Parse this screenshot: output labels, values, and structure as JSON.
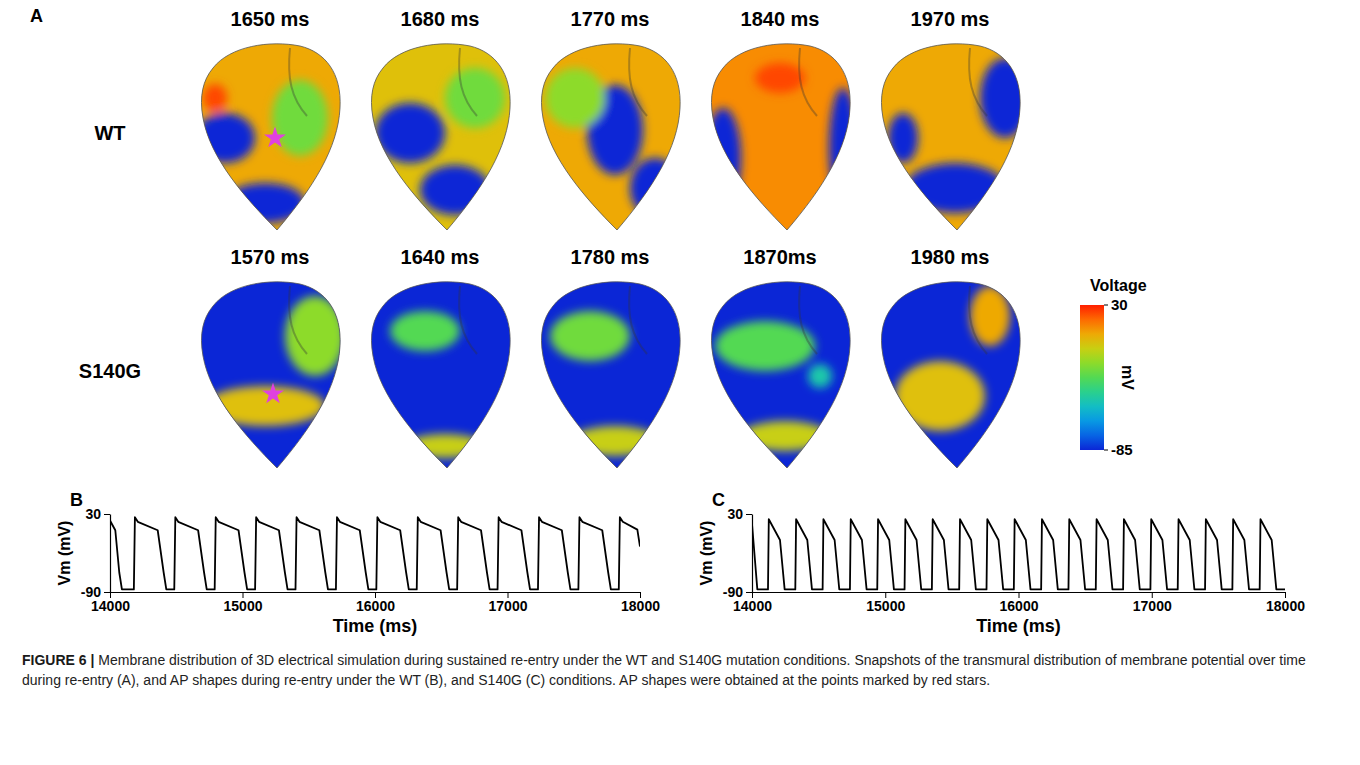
{
  "chart_data": [
    {
      "type": "line",
      "panel_label": "B",
      "x_label": "Time (ms)",
      "y_label": "Vm (mV)",
      "color": "#000000",
      "xlim": [
        14000,
        18000
      ],
      "xticks": [
        14000,
        15000,
        16000,
        17000,
        18000
      ],
      "ylim": [
        -90,
        30
      ],
      "yticks": [
        30,
        -90
      ],
      "x": [
        14000,
        14040,
        14070,
        14090,
        14180,
        14188,
        14210,
        14360,
        14405,
        14425,
        14485,
        14493,
        14515,
        14665,
        14710,
        14730,
        14790,
        14798,
        14820,
        14970,
        15015,
        15035,
        15095,
        15103,
        15125,
        15275,
        15320,
        15340,
        15400,
        15408,
        15430,
        15580,
        15625,
        15645,
        15705,
        15713,
        15735,
        15885,
        15930,
        15950,
        16010,
        16018,
        16040,
        16190,
        16235,
        16255,
        16315,
        16323,
        16345,
        16495,
        16540,
        16560,
        16620,
        16628,
        16650,
        16800,
        16845,
        16865,
        16925,
        16933,
        16955,
        17105,
        17150,
        17170,
        17230,
        17238,
        17260,
        17410,
        17455,
        17475,
        17535,
        17543,
        17565,
        17715,
        17760,
        17780,
        17840,
        17848,
        17870,
        17980,
        18000
      ],
      "values": [
        20,
        5,
        -60,
        -86,
        -86,
        25,
        18,
        5,
        -60,
        -86,
        -86,
        25,
        18,
        5,
        -60,
        -86,
        -86,
        25,
        18,
        5,
        -60,
        -86,
        -86,
        25,
        18,
        5,
        -60,
        -86,
        -86,
        25,
        18,
        5,
        -60,
        -86,
        -86,
        25,
        18,
        5,
        -60,
        -86,
        -86,
        25,
        18,
        5,
        -60,
        -86,
        -86,
        25,
        18,
        5,
        -60,
        -86,
        -86,
        25,
        18,
        5,
        -60,
        -86,
        -86,
        25,
        18,
        5,
        -60,
        -86,
        -86,
        25,
        18,
        5,
        -60,
        -86,
        -86,
        25,
        18,
        5,
        -60,
        -86,
        -86,
        25,
        18,
        6,
        -20
      ]
    },
    {
      "type": "line",
      "panel_label": "C",
      "x_label": "Time (ms)",
      "y_label": "Vm (mV)",
      "color": "#000000",
      "xlim": [
        14000,
        18000
      ],
      "xticks": [
        14000,
        15000,
        16000,
        17000,
        18000
      ],
      "ylim": [
        -90,
        30
      ],
      "yticks": [
        30,
        -90
      ],
      "x": [
        14000,
        14040,
        14120,
        14126,
        14210,
        14245,
        14325,
        14331,
        14415,
        14450,
        14530,
        14536,
        14620,
        14655,
        14735,
        14741,
        14825,
        14860,
        14940,
        14946,
        15030,
        15065,
        15145,
        15151,
        15235,
        15270,
        15350,
        15356,
        15440,
        15475,
        15555,
        15561,
        15645,
        15680,
        15760,
        15766,
        15850,
        15885,
        15965,
        15971,
        16055,
        16090,
        16170,
        16176,
        16260,
        16295,
        16375,
        16381,
        16465,
        16500,
        16580,
        16586,
        16670,
        16705,
        16785,
        16791,
        16875,
        16910,
        16990,
        16996,
        17080,
        17115,
        17195,
        17201,
        17285,
        17320,
        17400,
        17406,
        17490,
        17525,
        17605,
        17611,
        17695,
        17730,
        17810,
        17816,
        17900,
        17935,
        18000
      ],
      "values": [
        15,
        -86,
        -86,
        22,
        -10,
        -86,
        -86,
        22,
        -10,
        -86,
        -86,
        22,
        -10,
        -86,
        -86,
        22,
        -10,
        -86,
        -86,
        22,
        -10,
        -86,
        -86,
        22,
        -10,
        -86,
        -86,
        22,
        -10,
        -86,
        -86,
        22,
        -10,
        -86,
        -86,
        22,
        -10,
        -86,
        -86,
        22,
        -10,
        -86,
        -86,
        22,
        -10,
        -86,
        -86,
        22,
        -10,
        -86,
        -86,
        22,
        -10,
        -86,
        -86,
        22,
        -10,
        -86,
        -86,
        22,
        -10,
        -86,
        -86,
        22,
        -10,
        -86,
        -86,
        22,
        -10,
        -86,
        -86,
        22,
        -10,
        -86,
        -86,
        22,
        -10,
        -86,
        -86
      ]
    }
  ],
  "panel_a": {
    "panel_label": "A",
    "rows": [
      {
        "label": "WT",
        "times": [
          "1650 ms",
          "1680 ms",
          "1770 ms",
          "1840 ms",
          "1970 ms"
        ]
      },
      {
        "label": "S140G",
        "times": [
          "1570 ms",
          "1640 ms",
          "1780 ms",
          "1870ms",
          "1980 ms"
        ]
      }
    ],
    "colorbar": {
      "title": "Voltage",
      "unit": "mV",
      "range": [
        -85,
        30
      ],
      "ticks": [
        30,
        -85
      ]
    }
  },
  "caption": {
    "label": "FIGURE 6 |",
    "text": "Membrane distribution of 3D electrical simulation during sustained re-entry under the WT and S140G mutation conditions. Snapshots of the transmural distribution of membrane potential over time during re-entry (A), and AP shapes during re-entry under the WT (B), and S140G (C) conditions. AP shapes were obtained at the points marked by red stars."
  }
}
